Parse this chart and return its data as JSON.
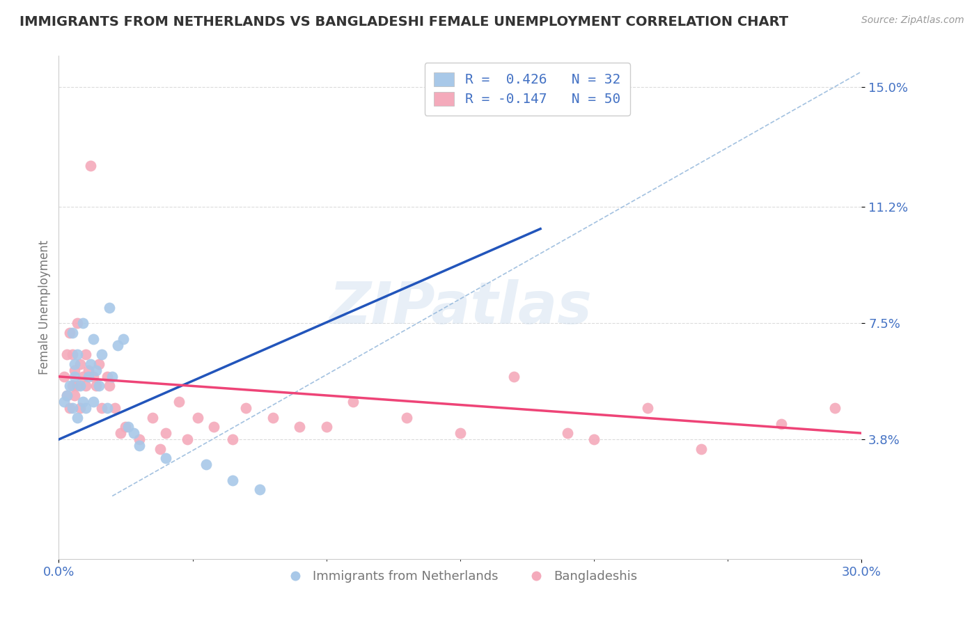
{
  "title": "IMMIGRANTS FROM NETHERLANDS VS BANGLADESHI FEMALE UNEMPLOYMENT CORRELATION CHART",
  "source_text": "Source: ZipAtlas.com",
  "ylabel": "Female Unemployment",
  "x_min": 0.0,
  "x_max": 0.3,
  "y_min": 0.0,
  "y_max": 0.16,
  "y_tick_positions": [
    0.038,
    0.075,
    0.112,
    0.15
  ],
  "y_tick_labels": [
    "3.8%",
    "7.5%",
    "11.2%",
    "15.0%"
  ],
  "legend_label_1": "R =  0.426   N = 32",
  "legend_label_2": "R = -0.147   N = 50",
  "legend_label_bottom_1": "Immigrants from Netherlands",
  "legend_label_bottom_2": "Bangladeshis",
  "blue_color": "#A8C8E8",
  "pink_color": "#F4AABB",
  "blue_line_color": "#2255BB",
  "pink_line_color": "#EE4477",
  "ref_line_color": "#99BBDD",
  "title_color": "#333333",
  "axis_label_color": "#777777",
  "tick_label_color": "#4472C4",
  "grid_color": "#CCCCCC",
  "background_color": "#FFFFFF",
  "watermark_text": "ZIPatlas",
  "blue_scatter_x": [
    0.002,
    0.003,
    0.004,
    0.005,
    0.005,
    0.006,
    0.006,
    0.007,
    0.007,
    0.008,
    0.009,
    0.009,
    0.01,
    0.011,
    0.012,
    0.013,
    0.013,
    0.014,
    0.015,
    0.016,
    0.018,
    0.019,
    0.02,
    0.022,
    0.024,
    0.026,
    0.028,
    0.03,
    0.04,
    0.055,
    0.065,
    0.075
  ],
  "blue_scatter_y": [
    0.05,
    0.052,
    0.055,
    0.048,
    0.072,
    0.058,
    0.062,
    0.065,
    0.045,
    0.055,
    0.075,
    0.05,
    0.048,
    0.058,
    0.062,
    0.07,
    0.05,
    0.06,
    0.055,
    0.065,
    0.048,
    0.08,
    0.058,
    0.068,
    0.07,
    0.042,
    0.04,
    0.036,
    0.032,
    0.03,
    0.025,
    0.022
  ],
  "pink_scatter_x": [
    0.002,
    0.003,
    0.003,
    0.004,
    0.004,
    0.005,
    0.005,
    0.006,
    0.006,
    0.007,
    0.007,
    0.008,
    0.008,
    0.009,
    0.01,
    0.01,
    0.011,
    0.012,
    0.013,
    0.014,
    0.015,
    0.016,
    0.018,
    0.019,
    0.021,
    0.023,
    0.025,
    0.03,
    0.035,
    0.038,
    0.04,
    0.045,
    0.048,
    0.052,
    0.058,
    0.065,
    0.07,
    0.08,
    0.09,
    0.1,
    0.11,
    0.13,
    0.15,
    0.17,
    0.19,
    0.2,
    0.22,
    0.24,
    0.27,
    0.29
  ],
  "pink_scatter_y": [
    0.058,
    0.052,
    0.065,
    0.048,
    0.072,
    0.055,
    0.065,
    0.06,
    0.052,
    0.075,
    0.055,
    0.062,
    0.048,
    0.058,
    0.065,
    0.055,
    0.06,
    0.125,
    0.058,
    0.055,
    0.062,
    0.048,
    0.058,
    0.055,
    0.048,
    0.04,
    0.042,
    0.038,
    0.045,
    0.035,
    0.04,
    0.05,
    0.038,
    0.045,
    0.042,
    0.038,
    0.048,
    0.045,
    0.042,
    0.042,
    0.05,
    0.045,
    0.04,
    0.058,
    0.04,
    0.038,
    0.048,
    0.035,
    0.043,
    0.048
  ],
  "blue_line_x0": 0.0,
  "blue_line_y0": 0.038,
  "blue_line_x1": 0.18,
  "blue_line_y1": 0.105,
  "pink_line_x0": 0.0,
  "pink_line_y0": 0.058,
  "pink_line_x1": 0.3,
  "pink_line_y1": 0.04
}
